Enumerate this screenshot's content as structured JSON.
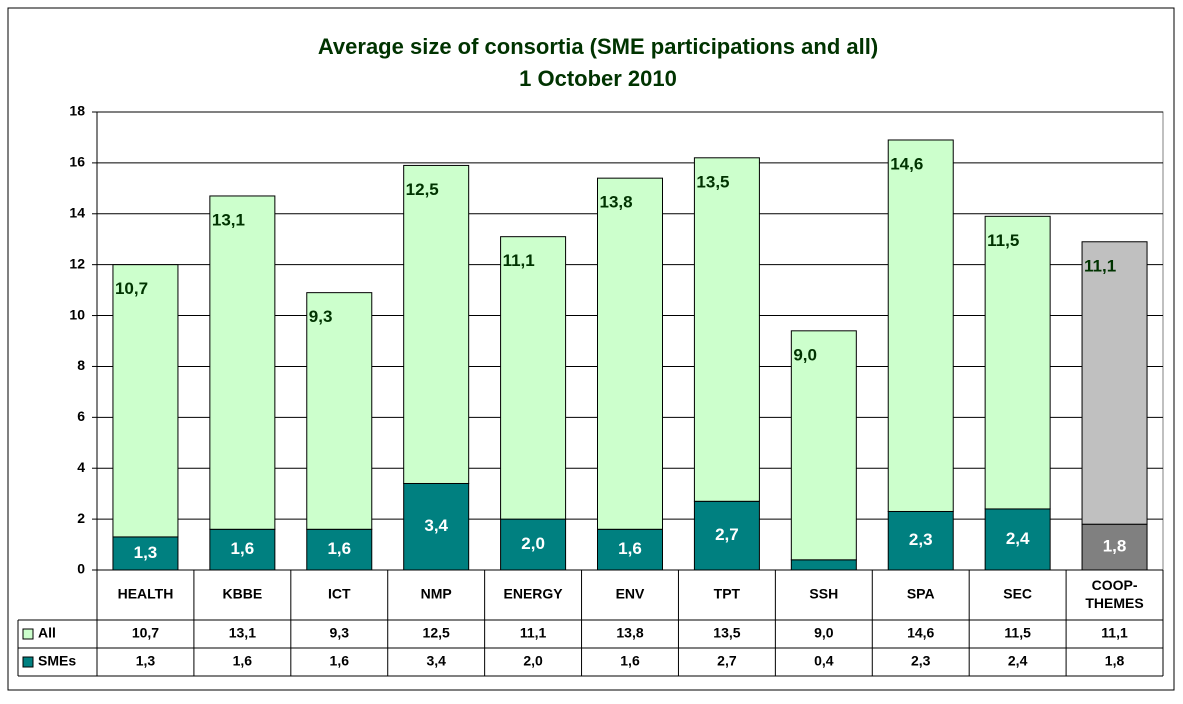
{
  "chart_data": {
    "type": "bar",
    "stacked": true,
    "title": "Average size of consortia (SME participations and all)",
    "subtitle": "1 October 2010",
    "categories": [
      "HEALTH",
      "KBBE",
      "ICT",
      "NMP",
      "ENERGY",
      "ENV",
      "TPT",
      "SSH",
      "SPA",
      "SEC",
      "COOP-THEMES"
    ],
    "series": [
      {
        "name": "SMEs",
        "color": "#008080",
        "colors": [
          "#008080",
          "#008080",
          "#008080",
          "#008080",
          "#008080",
          "#008080",
          "#008080",
          "#008080",
          "#008080",
          "#008080",
          "#808080"
        ],
        "values": [
          1.3,
          1.6,
          1.6,
          3.4,
          2.0,
          1.6,
          2.7,
          0.4,
          2.3,
          2.4,
          1.8
        ],
        "value_labels": [
          "1,3",
          "1,6",
          "1,6",
          "3,4",
          "2,0",
          "1,6",
          "2,7",
          "0,4",
          "2,3",
          "2,4",
          "1,8"
        ]
      },
      {
        "name": "All",
        "color": "#ccffcc",
        "colors": [
          "#ccffcc",
          "#ccffcc",
          "#ccffcc",
          "#ccffcc",
          "#ccffcc",
          "#ccffcc",
          "#ccffcc",
          "#ccffcc",
          "#ccffcc",
          "#ccffcc",
          "#c0c0c0"
        ],
        "values": [
          10.7,
          13.1,
          9.3,
          12.5,
          11.1,
          13.8,
          13.5,
          9.0,
          14.6,
          11.5,
          11.1
        ],
        "value_labels": [
          "10,7",
          "13,1",
          "9,3",
          "12,5",
          "11,1",
          "13,8",
          "13,5",
          "9,0",
          "14,6",
          "11,5",
          "11,1"
        ]
      }
    ],
    "ylim": [
      0,
      18
    ],
    "yticks": [
      0,
      2,
      4,
      6,
      8,
      10,
      12,
      14,
      16,
      18
    ],
    "grid": true,
    "data_table": true
  }
}
